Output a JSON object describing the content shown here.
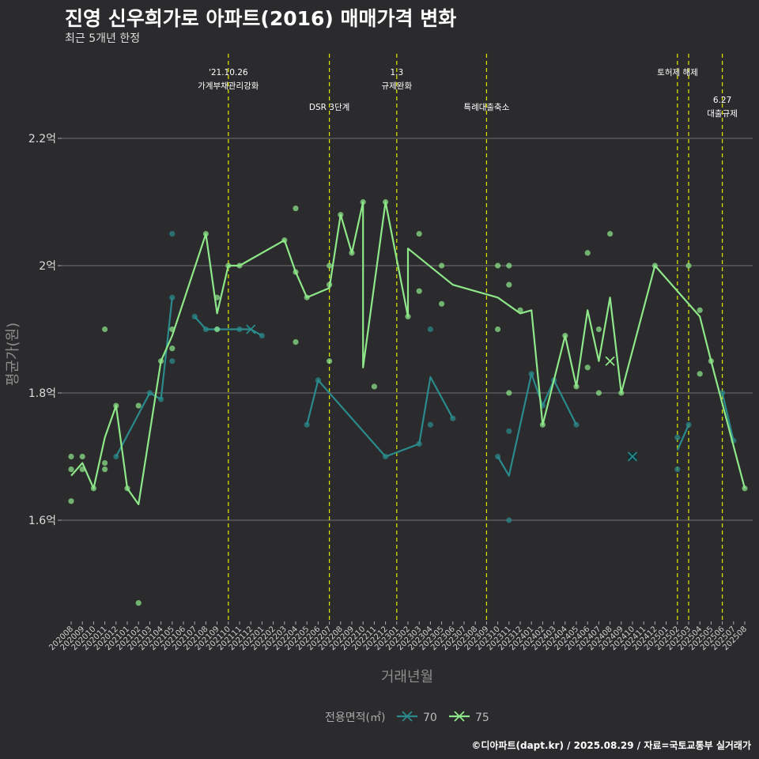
{
  "title": "진영 신우희가로 아파트(2016) 매매가격 변화",
  "subtitle": "최근 5개년 한정",
  "credit": "©디아파트(dapt.kr) / 2025.08.29 / 자료=국토교통부 실거래가",
  "colors": {
    "background": "#2b2a2c",
    "s70": "#2a8a8c",
    "s75": "#8ee88a",
    "event_line": "#d4e000"
  },
  "chart_data": {
    "type": "line",
    "xlabel": "거래년월",
    "ylabel": "평균가(원)",
    "y_unit": "억",
    "ylim": [
      1.4,
      2.4
    ],
    "y_ticks": [
      1.6,
      1.8,
      2.0,
      2.2
    ],
    "y_tick_labels": [
      "1.6억",
      "1.8억",
      "2억",
      "2.2억"
    ],
    "grid": true,
    "legend_title": "전용면적(㎡)",
    "legend_position": "bottom",
    "x_categories": [
      "202008",
      "202009",
      "202010",
      "202011",
      "202012",
      "202101",
      "202102",
      "202103",
      "202104",
      "202105",
      "202106",
      "202107",
      "202108",
      "202109",
      "202110",
      "202111",
      "202112",
      "202201",
      "202202",
      "202203",
      "202204",
      "202205",
      "202206",
      "202207",
      "202208",
      "202209",
      "202210",
      "202211",
      "202212",
      "202301",
      "202302",
      "202303",
      "202304",
      "202305",
      "202306",
      "202307",
      "202308",
      "202309",
      "202310",
      "202311",
      "202312",
      "202401",
      "202402",
      "202403",
      "202404",
      "202405",
      "202406",
      "202407",
      "202408",
      "202409",
      "202410",
      "202411",
      "202412",
      "202501",
      "202502",
      "202503",
      "202504",
      "202505",
      "202506",
      "202507",
      "202508"
    ],
    "x_extra": [
      [
        "202008",
        0
      ],
      [
        "202210",
        0.55
      ],
      [
        "202302",
        0.5
      ],
      [
        "202306",
        0.3
      ],
      [
        "202403",
        0
      ],
      [
        "202408",
        0
      ],
      [
        "202503",
        0
      ],
      [
        "202504",
        0
      ],
      [
        "202508",
        0
      ]
    ],
    "series": [
      {
        "name": "70",
        "line": [
          [
            "202012",
            1.7
          ],
          [
            "202103",
            1.8
          ],
          [
            "202104",
            1.79
          ],
          [
            "202105",
            1.95
          ],
          null,
          [
            "202107",
            1.92
          ],
          [
            "202108",
            1.9
          ],
          [
            "202109",
            1.9
          ],
          [
            "202111",
            1.9
          ],
          [
            "202112",
            1.9
          ],
          [
            "202201",
            1.89
          ],
          null,
          [
            "202205",
            1.75
          ],
          [
            "202206",
            1.82
          ],
          [
            "202212",
            1.7
          ],
          [
            "202303",
            1.72
          ],
          [
            "202304",
            1.825
          ],
          [
            "202306",
            1.76
          ],
          null,
          [
            "202310",
            1.7
          ],
          [
            "202311",
            1.67
          ],
          [
            "202401",
            1.83
          ],
          [
            "202402",
            1.78
          ],
          [
            "202403",
            1.82
          ],
          [
            "202405",
            1.75
          ],
          null,
          [
            "202502",
            1.71
          ],
          [
            "202503",
            1.75
          ],
          null,
          [
            "202506",
            1.8
          ],
          [
            "202507",
            1.725
          ]
        ],
        "points": [
          [
            "202012",
            1.7
          ],
          [
            "202103",
            1.8
          ],
          [
            "202104",
            1.79
          ],
          [
            "202105",
            1.95
          ],
          [
            "202105",
            1.85
          ],
          [
            "202105",
            2.05
          ],
          [
            "202107",
            1.92
          ],
          [
            "202108",
            1.9
          ],
          [
            "202109",
            1.9
          ],
          [
            "202111",
            1.9
          ],
          [
            "202201",
            1.89
          ],
          [
            "202205",
            1.75
          ],
          [
            "202206",
            1.82
          ],
          [
            "202212",
            1.7
          ],
          [
            "202303",
            1.72
          ],
          [
            "202304",
            1.75
          ],
          [
            "202304",
            1.9
          ],
          [
            "202306",
            1.76
          ],
          [
            "202310",
            1.7
          ],
          [
            "202311",
            1.6
          ],
          [
            "202311",
            1.74
          ],
          [
            "202401",
            1.83
          ],
          [
            "202402",
            1.78
          ],
          [
            "202403",
            1.82
          ],
          [
            "202405",
            1.75
          ],
          [
            "202410",
            1.7
          ],
          [
            "202502",
            1.73
          ],
          [
            "202502",
            1.68
          ],
          [
            "202503",
            1.75
          ],
          [
            "202506",
            1.8
          ],
          [
            "202507",
            1.725
          ]
        ],
        "crosses": [
          [
            "202112",
            1.9
          ],
          [
            "202410",
            1.7
          ]
        ]
      },
      {
        "name": "75",
        "line": [
          [
            "202008",
            1.67
          ],
          [
            "202009",
            1.69
          ],
          [
            "202010",
            1.65
          ],
          [
            "202011",
            1.73
          ],
          [
            "202012",
            1.78
          ],
          [
            "202101",
            1.65
          ],
          [
            "202102",
            1.625
          ],
          [
            "202104",
            1.85
          ],
          [
            "202105",
            1.89
          ],
          [
            "202108",
            2.05
          ],
          [
            "202109",
            1.925
          ],
          [
            "202110",
            2.0
          ],
          [
            "202111",
            2.0
          ],
          [
            "202203",
            2.04
          ],
          [
            "202204",
            1.99
          ],
          [
            "202205",
            1.95
          ],
          [
            "202207",
            1.965
          ],
          [
            "202208",
            2.08
          ],
          [
            "202209",
            2.02
          ],
          [
            "202210",
            2.1
          ],
          [
            "202210",
            1.84
          ],
          [
            "202212",
            2.1
          ],
          [
            "202302",
            1.92
          ],
          [
            "202302",
            2.027
          ],
          [
            "202306",
            1.97
          ],
          [
            "202310",
            1.95
          ],
          [
            "202312",
            1.925
          ],
          [
            "202401",
            1.93
          ],
          [
            "202402",
            1.75
          ],
          [
            "202404",
            1.89
          ],
          [
            "202405",
            1.81
          ],
          [
            "202406",
            1.93
          ],
          [
            "202407",
            1.85
          ],
          [
            "202408",
            1.95
          ],
          [
            "202409",
            1.8
          ],
          [
            "202412",
            2.0
          ],
          [
            "202504",
            1.92
          ],
          [
            "202505",
            1.85
          ],
          [
            "202508",
            1.65
          ]
        ],
        "points": [
          [
            "202008",
            1.7
          ],
          [
            "202008",
            1.68
          ],
          [
            "202008",
            1.63
          ],
          [
            "202009",
            1.7
          ],
          [
            "202009",
            1.68
          ],
          [
            "202010",
            1.65
          ],
          [
            "202011",
            1.9
          ],
          [
            "202011",
            1.69
          ],
          [
            "202011",
            1.68
          ],
          [
            "202012",
            1.78
          ],
          [
            "202101",
            1.65
          ],
          [
            "202102",
            1.78
          ],
          [
            "202102",
            1.47
          ],
          [
            "202104",
            1.85
          ],
          [
            "202105",
            1.9
          ],
          [
            "202105",
            1.87
          ],
          [
            "202108",
            2.05
          ],
          [
            "202109",
            1.95
          ],
          [
            "202109",
            1.9
          ],
          [
            "202110",
            2.0
          ],
          [
            "202111",
            2.0
          ],
          [
            "202203",
            2.04
          ],
          [
            "202204",
            1.99
          ],
          [
            "202204",
            2.09
          ],
          [
            "202204",
            1.88
          ],
          [
            "202205",
            1.95
          ],
          [
            "202207",
            2.0
          ],
          [
            "202207",
            1.97
          ],
          [
            "202207",
            1.85
          ],
          [
            "202208",
            2.08
          ],
          [
            "202209",
            2.02
          ],
          [
            "202210",
            2.1
          ],
          [
            "202211",
            1.81
          ],
          [
            "202212",
            2.1
          ],
          [
            "202302",
            1.92
          ],
          [
            "202303",
            2.05
          ],
          [
            "202303",
            1.96
          ],
          [
            "202305",
            2.0
          ],
          [
            "202305",
            1.94
          ],
          [
            "202310",
            2.0
          ],
          [
            "202310",
            1.9
          ],
          [
            "202311",
            2.0
          ],
          [
            "202311",
            1.97
          ],
          [
            "202311",
            1.8
          ],
          [
            "202312",
            1.93
          ],
          [
            "202402",
            1.75
          ],
          [
            "202404",
            1.89
          ],
          [
            "202405",
            1.81
          ],
          [
            "202406",
            1.84
          ],
          [
            "202406",
            2.02
          ],
          [
            "202407",
            1.9
          ],
          [
            "202407",
            1.8
          ],
          [
            "202408",
            2.05
          ],
          [
            "202409",
            1.8
          ],
          [
            "202412",
            2.0
          ],
          [
            "202503",
            2.0
          ],
          [
            "202504",
            1.93
          ],
          [
            "202504",
            1.83
          ],
          [
            "202505",
            1.85
          ],
          [
            "202508",
            1.65
          ]
        ],
        "crosses": [
          [
            "202408",
            1.85
          ]
        ]
      }
    ],
    "events": [
      {
        "date": "202110",
        "label_lines": [
          "'21.10.26",
          "가계부채관리강화"
        ],
        "row": 0
      },
      {
        "date": "202207",
        "label_lines": [
          "DSR 3단계"
        ],
        "row": 1
      },
      {
        "date": "202301",
        "label_lines": [
          "1.3",
          "규제완화"
        ],
        "row": 0
      },
      {
        "date": "202309",
        "label_lines": [
          "특례대출축소"
        ],
        "row": 1
      },
      {
        "date": "202502",
        "label_lines": [],
        "row": 0
      },
      {
        "date": "202503",
        "label_lines": [
          "토허제 해제"
        ],
        "row": 0,
        "text_dx": -14
      },
      {
        "date": "202506",
        "label_lines": [
          "6.27",
          "대출규제"
        ],
        "row": 2
      }
    ]
  }
}
